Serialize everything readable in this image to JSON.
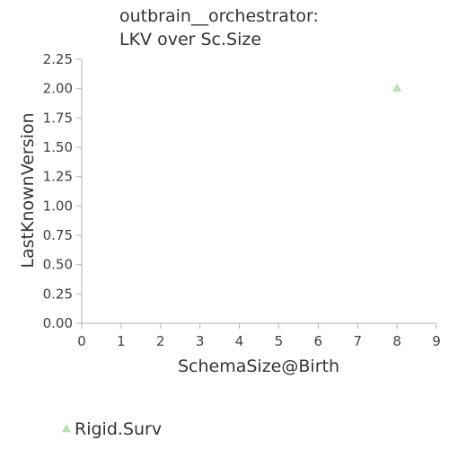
{
  "chart_data": {
    "type": "scatter",
    "title_lines": [
      "outbrain__orchestrator:",
      "LKV over Sc.Size"
    ],
    "xlabel": "SchemaSize@Birth",
    "ylabel": "LastKnownVersion",
    "xlim": [
      0,
      9
    ],
    "ylim": [
      0,
      2.25
    ],
    "x_ticks": [
      "0",
      "1",
      "2",
      "3",
      "4",
      "5",
      "6",
      "7",
      "8",
      "9"
    ],
    "y_ticks": [
      "0.00",
      "0.25",
      "0.50",
      "0.75",
      "1.00",
      "1.25",
      "1.50",
      "1.75",
      "2.00",
      "2.25"
    ],
    "grid": false,
    "legend_position": "bottom-left",
    "series": [
      {
        "name": "Rigid.Surv",
        "marker": "triangle",
        "color": "#a6dba0",
        "points": [
          {
            "x": 8,
            "y": 2.0
          }
        ]
      }
    ]
  }
}
